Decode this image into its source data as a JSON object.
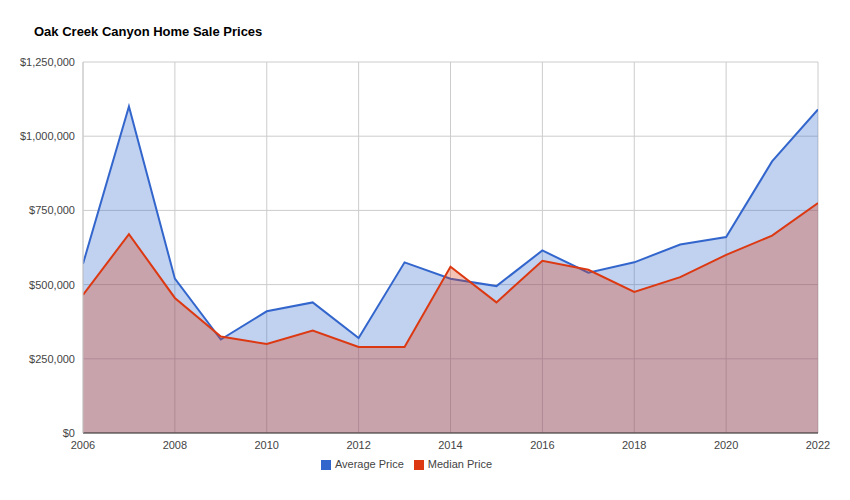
{
  "chart_data": {
    "type": "area",
    "title": "Oak Creek Canyon Home Sale Prices",
    "x": [
      2006,
      2007,
      2008,
      2009,
      2010,
      2011,
      2012,
      2013,
      2014,
      2015,
      2016,
      2017,
      2018,
      2019,
      2020,
      2021,
      2022
    ],
    "series": [
      {
        "name": "Average Price",
        "color": "#3366cc",
        "values": [
          570000,
          1100000,
          520000,
          315000,
          410000,
          440000,
          320000,
          575000,
          520000,
          495000,
          615000,
          540000,
          575000,
          635000,
          660000,
          915000,
          1090000
        ]
      },
      {
        "name": "Median Price",
        "color": "#dc3912",
        "values": [
          465000,
          670000,
          455000,
          325000,
          300000,
          345000,
          290000,
          290000,
          560000,
          440000,
          580000,
          550000,
          475000,
          525000,
          600000,
          665000,
          775000
        ]
      }
    ],
    "xlim": [
      2006,
      2022
    ],
    "xticks": [
      2006,
      2008,
      2010,
      2012,
      2014,
      2016,
      2018,
      2020,
      2022
    ],
    "ylim": [
      0,
      1250000
    ],
    "yticks": [
      {
        "value": 0,
        "label": "$0"
      },
      {
        "value": 250000,
        "label": "$250,000"
      },
      {
        "value": 500000,
        "label": "$500,000"
      },
      {
        "value": 750000,
        "label": "$750,000"
      },
      {
        "value": 1000000,
        "label": "$1,000,000"
      },
      {
        "value": 1250000,
        "label": "$1,250,000"
      }
    ],
    "grid": true,
    "legend": "bottom"
  }
}
